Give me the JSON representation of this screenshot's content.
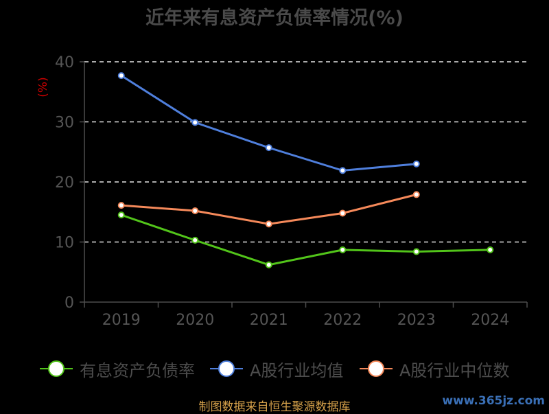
{
  "chart_data": {
    "type": "line",
    "title": "近年来有息资产负债率情况(%)",
    "ylabel": "(%)",
    "ylim": [
      0,
      40
    ],
    "yticks": [
      0,
      10,
      20,
      30,
      40
    ],
    "grid": "dashed horizontal",
    "legend_position": "bottom",
    "categories": [
      "2019",
      "2020",
      "2021",
      "2022",
      "2023",
      "2024"
    ],
    "series": [
      {
        "name": "有息资产负债率",
        "color": "#52c41a",
        "values": [
          14.5,
          10.3,
          6.2,
          8.7,
          8.4,
          8.7
        ]
      },
      {
        "name": "A股行业均值",
        "color": "#4f7fdc",
        "values": [
          37.7,
          29.9,
          25.7,
          21.9,
          23.0,
          null
        ]
      },
      {
        "name": "A股行业中位数",
        "color": "#f5895a",
        "values": [
          16.1,
          15.2,
          13.0,
          14.8,
          17.9,
          null
        ]
      }
    ]
  },
  "footer": {
    "source": "制图数据来自恒生聚源数据库"
  },
  "watermark": {
    "text": "www.365jz.com"
  }
}
